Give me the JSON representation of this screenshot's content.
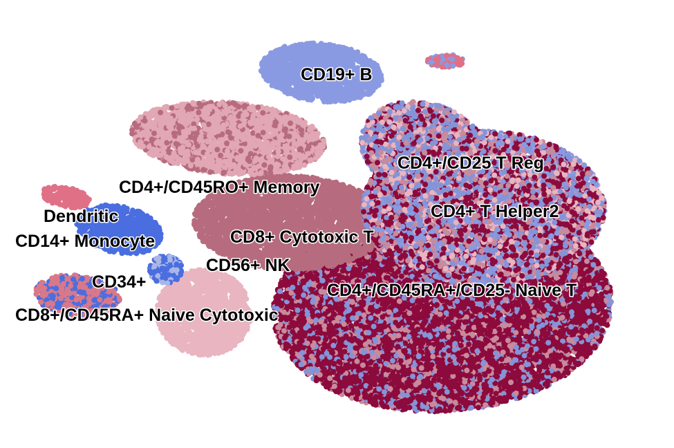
{
  "chart_data": {
    "type": "scatter",
    "clusters": [
      {
        "label": "CD19+ B",
        "color": "#8a9ae2"
      },
      {
        "label": "CD4+/CD25 T Reg",
        "color": "#8494d8"
      },
      {
        "label": "CD4+/CD45RO+ Memory",
        "color": "#e2a7b4"
      },
      {
        "label": "CD4+ T Helper2",
        "color": "#c98a9c"
      },
      {
        "label": "Dendritic",
        "color": "#e07086"
      },
      {
        "label": "CD14+ Monocyte",
        "color": "#4a6ee0"
      },
      {
        "label": "CD8+ Cytotoxic T",
        "color": "#b66c7e"
      },
      {
        "label": "CD56+ NK",
        "color": "#e8b5c0"
      },
      {
        "label": "CD4+/CD45RA+/CD25- Naive T",
        "color": "#8c0a3c"
      },
      {
        "label": "CD34+",
        "color": "#aab6e8"
      },
      {
        "label": "CD8+/CD45RA+ Naive Cytotoxic",
        "color": "#d8788a"
      }
    ]
  }
}
